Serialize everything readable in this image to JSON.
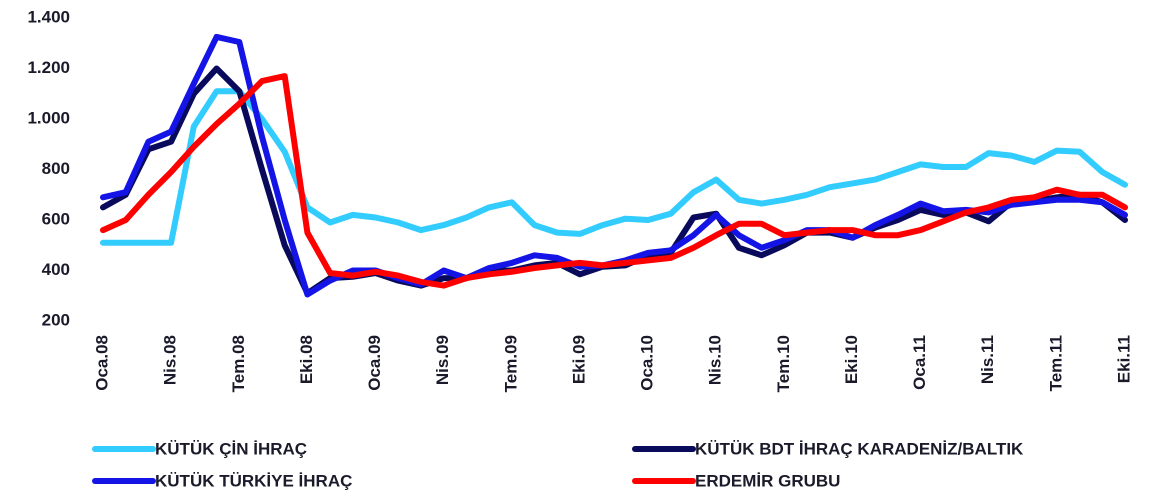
{
  "chart_data": {
    "type": "line",
    "categories": [
      "Oca.08",
      null,
      null,
      "Nis.08",
      null,
      null,
      "Tem.08",
      null,
      null,
      "Eki.08",
      null,
      null,
      "Oca.09",
      null,
      null,
      "Nis.09",
      null,
      null,
      "Tem.09",
      null,
      null,
      "Eki.09",
      null,
      null,
      "Oca.10",
      null,
      null,
      "Nis.10",
      null,
      null,
      "Tem.10",
      null,
      null,
      "Eki.10",
      null,
      null,
      "Oca.11",
      null,
      null,
      "Nis.11",
      null,
      null,
      "Tem.11",
      null,
      null,
      "Eki.11"
    ],
    "series": [
      {
        "name": "KÜTÜK ÇİN İHRAÇ",
        "color": "#33ccff",
        "values": [
          510,
          510,
          510,
          510,
          970,
          1110,
          1110,
          1000,
          870,
          650,
          590,
          620,
          610,
          590,
          560,
          580,
          610,
          650,
          670,
          580,
          550,
          545,
          580,
          605,
          600,
          625,
          710,
          760,
          680,
          665,
          680,
          700,
          730,
          745,
          760,
          790,
          820,
          810,
          810,
          865,
          855,
          830,
          875,
          870,
          790,
          740
        ]
      },
      {
        "name": "KÜTÜK BDT İHRAÇ KARADENİZ/BALTIK",
        "color": "#0a0a5c",
        "values": [
          650,
          700,
          880,
          910,
          1100,
          1200,
          1110,
          800,
          500,
          310,
          370,
          375,
          390,
          360,
          340,
          370,
          370,
          400,
          400,
          420,
          430,
          385,
          415,
          420,
          460,
          470,
          610,
          625,
          490,
          460,
          500,
          550,
          550,
          530,
          570,
          600,
          640,
          620,
          630,
          595,
          670,
          675,
          690,
          700,
          670,
          600
        ]
      },
      {
        "name": "KÜTÜK TÜRKİYE İHRAÇ",
        "color": "#1414e6",
        "values": [
          690,
          710,
          910,
          950,
          1140,
          1325,
          1305,
          930,
          600,
          305,
          360,
          400,
          400,
          370,
          345,
          400,
          370,
          410,
          430,
          460,
          450,
          415,
          420,
          440,
          470,
          480,
          540,
          620,
          540,
          490,
          520,
          560,
          560,
          530,
          580,
          620,
          665,
          635,
          640,
          630,
          660,
          670,
          680,
          680,
          670,
          620
        ]
      },
      {
        "name": "ERDEMİR GRUBU",
        "color": "#ff0000",
        "values": [
          560,
          600,
          700,
          790,
          890,
          980,
          1060,
          1150,
          1170,
          550,
          390,
          380,
          395,
          380,
          355,
          340,
          370,
          385,
          395,
          410,
          420,
          430,
          420,
          430,
          440,
          450,
          490,
          540,
          585,
          585,
          540,
          550,
          560,
          560,
          540,
          540,
          560,
          595,
          630,
          650,
          680,
          690,
          720,
          700,
          700,
          650
        ]
      }
    ],
    "ylim": [
      200,
      1400
    ],
    "yticks": [
      200,
      400,
      600,
      800,
      {
        "value": 1000,
        "label": "1.000"
      },
      {
        "value": 1200,
        "label": "1.200"
      },
      {
        "value": 1400,
        "label": "1.400"
      }
    ]
  }
}
